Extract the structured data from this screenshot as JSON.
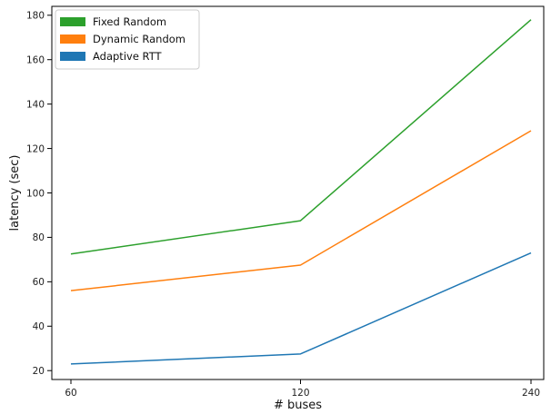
{
  "chart_data": {
    "type": "line",
    "title": "",
    "xlabel": "# buses",
    "ylabel": "latency (sec)",
    "x": [
      60,
      120,
      240
    ],
    "x_tick_labels": [
      "60",
      "120",
      "240"
    ],
    "y_ticks": [
      20,
      40,
      60,
      80,
      100,
      120,
      140,
      160,
      180
    ],
    "ylim": [
      16,
      184
    ],
    "grid": false,
    "legend_position": "top-left",
    "series": [
      {
        "name": "Fixed Random",
        "color": "#2ca02c",
        "values": [
          72.5,
          87.5,
          178
        ]
      },
      {
        "name": "Dynamic Random",
        "color": "#ff7f0e",
        "values": [
          56,
          67.5,
          128
        ]
      },
      {
        "name": "Adaptive RTT",
        "color": "#1f77b4",
        "values": [
          23,
          27.5,
          73
        ]
      }
    ]
  }
}
